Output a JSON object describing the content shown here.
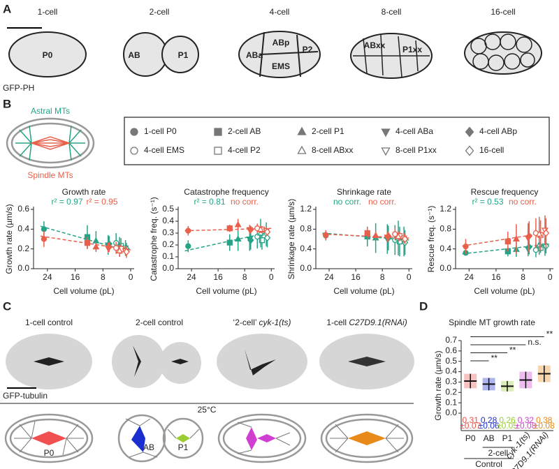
{
  "panel_labels": [
    "A",
    "B",
    "C",
    "D"
  ],
  "panel_a": {
    "stages": [
      "1-cell",
      "2-cell",
      "4-cell",
      "8-cell",
      "16-cell"
    ],
    "cells": [
      "P0",
      "AB",
      "P1",
      "ABa",
      "ABp",
      "P2",
      "EMS",
      "ABxx",
      "P1xx"
    ],
    "stain": "GFP-PH"
  },
  "panel_b": {
    "astral_label": "Astral MTs",
    "spindle_label": "Spindle MTs",
    "legend": [
      {
        "label": "1-cell P0",
        "marker": "circle",
        "filled": true
      },
      {
        "label": "2-cell AB",
        "marker": "square",
        "filled": true
      },
      {
        "label": "2-cell P1",
        "marker": "triangle",
        "filled": true
      },
      {
        "label": "4-cell ABa",
        "marker": "triangle-down",
        "filled": true
      },
      {
        "label": "4-cell ABp",
        "marker": "diamond",
        "filled": true
      },
      {
        "label": "4-cell EMS",
        "marker": "circle",
        "filled": false
      },
      {
        "label": "4-cell P2",
        "marker": "square",
        "filled": false
      },
      {
        "label": "8-cell ABxx",
        "marker": "triangle",
        "filled": false
      },
      {
        "label": "8-cell P1xx",
        "marker": "triangle-down",
        "filled": false
      },
      {
        "label": "16-cell",
        "marker": "diamond",
        "filled": false
      }
    ]
  },
  "panel_c": {
    "conditions": [
      {
        "text": "1-cell control"
      },
      {
        "text": "2-cell control"
      },
      {
        "prefix": "‘2-cell’ ",
        "italic": "cyk-1(ts)"
      },
      {
        "prefix": "1-cell ",
        "italic": "C27D9.1(RNAi)"
      }
    ],
    "stain": "GFP-tubulin",
    "temperature": "25°C",
    "cells": [
      "P0",
      "AB",
      "P1"
    ]
  },
  "chart_data": [
    {
      "type": "scatter",
      "title": "Growth rate",
      "xlabel": "Cell volume (pL)",
      "ylabel": "Growth rate (µm/s)",
      "x": [
        25,
        12.5,
        10,
        6.5,
        6.2,
        4.2,
        2.8,
        3.2,
        1.5,
        1.2
      ],
      "xlim": [
        28,
        -1
      ],
      "xticks": [
        24,
        16,
        8,
        0
      ],
      "ylim": [
        0,
        0.6
      ],
      "yticks": [
        {
          "value": 0,
          "label": "0.0"
        },
        0.2,
        0.4,
        0.6
      ],
      "fit_x": [
        26,
        0
      ],
      "series": [
        {
          "color": "#26a387",
          "annotation": "r² = 0.97",
          "values": [
            0.4,
            0.32,
            0.28,
            0.24,
            0.25,
            0.26,
            0.23,
            0.22,
            0.21,
            0.2
          ],
          "errors": [
            0.08,
            0.12,
            0.1,
            0.1,
            0.08,
            0.1,
            0.08,
            0.1,
            0.08,
            0.06
          ],
          "fit": [
            0.43,
            0.17
          ]
        },
        {
          "color": "#e8604c",
          "annotation": "r² = 0.95",
          "values": [
            0.3,
            0.26,
            0.22,
            0.21,
            0.22,
            0.21,
            0.2,
            0.18,
            0.18,
            0.17
          ],
          "errors": [
            0.08,
            0.06,
            0.05,
            0.05,
            0.05,
            0.06,
            0.05,
            0.06,
            0.05,
            0.06
          ],
          "fit": [
            0.33,
            0.19
          ]
        }
      ]
    },
    {
      "type": "scatter",
      "title": "Catastrophe frequency",
      "xlabel": "Cell volume (pL)",
      "ylabel": "Catastrophe freq. (s⁻¹)",
      "x": [
        25,
        12.5,
        10,
        6.5,
        6.2,
        4.2,
        2.8,
        3.2,
        1.5,
        1.2
      ],
      "xlim": [
        28,
        -1
      ],
      "xticks": [
        24,
        16,
        8,
        0
      ],
      "ylim": [
        0,
        0.5
      ],
      "yticks": [
        {
          "value": 0,
          "label": "0.0"
        },
        0.1,
        0.2,
        0.3,
        0.4,
        0.5
      ],
      "fit_x": [
        26,
        0
      ],
      "series": [
        {
          "color": "#26a387",
          "annotation": "r² = 0.81",
          "values": [
            0.19,
            0.22,
            0.25,
            0.25,
            0.24,
            0.27,
            0.24,
            0.3,
            0.29,
            0.26
          ],
          "errors": [
            0.05,
            0.07,
            0.1,
            0.1,
            0.08,
            0.1,
            0.08,
            0.12,
            0.1,
            0.08
          ],
          "fit": [
            0.15,
            0.31
          ]
        },
        {
          "color": "#e8604c",
          "annotation": "no corr.",
          "values": [
            0.32,
            0.34,
            0.37,
            0.33,
            0.33,
            0.34,
            0.33,
            0.33,
            0.32,
            0.31
          ],
          "errors": [
            0.04,
            0.03,
            0.05,
            0.04,
            0.03,
            0.04,
            0.03,
            0.03,
            0.03,
            0.03
          ],
          "fit": [
            0.32,
            0.34
          ]
        }
      ]
    },
    {
      "type": "scatter",
      "title": "Shrinkage rate",
      "xlabel": "Cell volume (pL)",
      "ylabel": "Shrinkage rate (µm/s)",
      "x": [
        25,
        12.5,
        10,
        6.5,
        6.2,
        4.2,
        2.8,
        3.2,
        1.5,
        1.2
      ],
      "xlim": [
        28,
        -1
      ],
      "xticks": [
        24,
        16,
        8,
        0
      ],
      "ylim": [
        0,
        1.2
      ],
      "yticks": [
        {
          "value": 0,
          "label": "0.0"
        },
        0.4,
        0.8,
        1.2
      ],
      "fit_x": [
        26,
        0
      ],
      "series": [
        {
          "color": "#26a387",
          "annotation": "no corr.",
          "values": [
            0.67,
            0.65,
            0.62,
            0.6,
            0.62,
            0.58,
            0.55,
            0.62,
            0.55,
            0.53
          ],
          "errors": [
            0.1,
            0.2,
            0.3,
            0.3,
            0.25,
            0.3,
            0.3,
            0.35,
            0.3,
            0.25
          ],
          "fit": [
            0.72,
            0.58
          ]
        },
        {
          "color": "#e8604c",
          "annotation": "no corr.",
          "values": [
            0.68,
            0.72,
            0.67,
            0.64,
            0.66,
            0.7,
            0.66,
            0.65,
            0.62,
            0.6
          ],
          "errors": [
            0.1,
            0.12,
            0.1,
            0.1,
            0.1,
            0.12,
            0.1,
            0.1,
            0.1,
            0.1
          ],
          "fit": [
            0.7,
            0.62
          ]
        }
      ]
    },
    {
      "type": "scatter",
      "title": "Rescue frequency",
      "xlabel": "Cell volume (pL)",
      "ylabel": "Rescue freq. (s⁻¹)",
      "x": [
        25,
        12.5,
        10,
        6.5,
        6.2,
        4.2,
        2.8,
        3.2,
        1.5,
        1.2
      ],
      "xlim": [
        28,
        -1
      ],
      "xticks": [
        24,
        16,
        8,
        0
      ],
      "ylim": [
        0,
        1.2
      ],
      "yticks": [
        {
          "value": 0,
          "label": "0.0"
        },
        0.4,
        0.8,
        1.2
      ],
      "fit_x": [
        26,
        0
      ],
      "series": [
        {
          "color": "#26a387",
          "annotation": "r² = 0.53",
          "values": [
            0.32,
            0.35,
            0.39,
            0.4,
            0.44,
            0.38,
            0.42,
            0.48,
            0.46,
            0.46
          ],
          "errors": [
            0.05,
            0.1,
            0.15,
            0.15,
            0.15,
            0.15,
            0.1,
            0.2,
            0.2,
            0.15
          ],
          "fit": [
            0.3,
            0.5
          ]
        },
        {
          "color": "#e8604c",
          "annotation": "no corr.",
          "values": [
            0.45,
            0.55,
            0.6,
            0.62,
            0.66,
            0.72,
            0.68,
            0.7,
            0.78,
            0.72
          ],
          "errors": [
            0.15,
            0.2,
            0.3,
            0.3,
            0.3,
            0.3,
            0.3,
            0.35,
            0.3,
            0.3
          ],
          "fit": [
            0.46,
            0.74
          ]
        }
      ]
    },
    {
      "type": "dot",
      "title": "Spindle MT growth rate",
      "ylabel": "Growth rate (µm/s)",
      "categories": [
        "P0",
        "AB",
        "P1",
        "cyk-1(ts)",
        "C27D9.1(RNAi)"
      ],
      "colors": [
        "#e8524a",
        "#1a2fd0",
        "#9acd32",
        "#d040d0",
        "#e88a1a"
      ],
      "values": [
        0.31,
        0.28,
        0.26,
        0.32,
        0.38
      ],
      "sd": [
        0.07,
        0.06,
        0.05,
        0.08,
        0.08
      ],
      "sd_labels": [
        "±0.07",
        "±0.06",
        "±0.05",
        "±0.08",
        "±0.08"
      ],
      "ylim": [
        0,
        0.7
      ],
      "yticks": [
        {
          "value": 0,
          "label": "0.0"
        },
        0.1,
        0.2,
        0.3,
        0.4,
        0.5,
        0.6,
        0.7
      ],
      "significance": [
        "**",
        "**",
        "n.s.",
        "**"
      ],
      "group_labels": [
        "2-cell",
        "Control"
      ]
    }
  ]
}
